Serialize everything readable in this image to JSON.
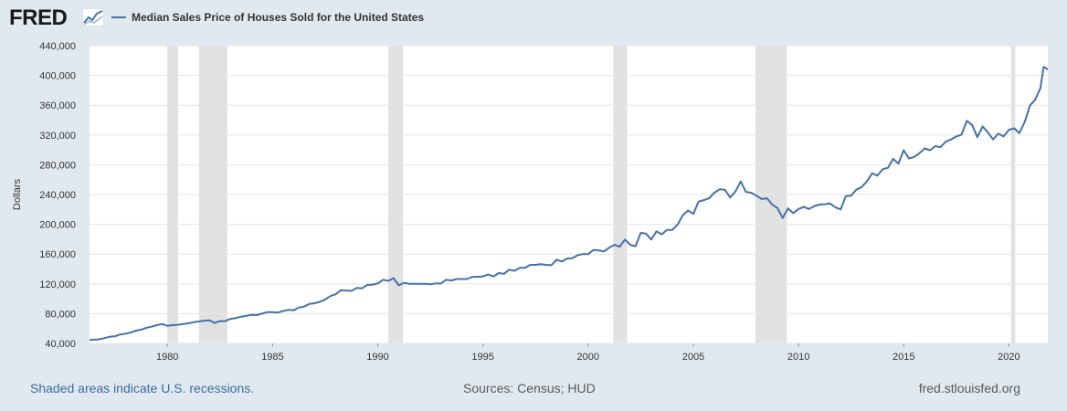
{
  "header": {
    "logo_text": "FRED",
    "logo_icon": "line-graph-icon",
    "series_label": "Median Sales Price of Houses Sold for the United States"
  },
  "footer": {
    "recessions_note": "Shaded areas indicate U.S. recessions.",
    "sources": "Sources: Census; HUD",
    "site": "fred.stlouisfed.org"
  },
  "colors": {
    "background": "#e1e9f0",
    "plot_background": "#ffffff",
    "series": "#4572a7",
    "recession": "#e1e1e1",
    "grid": "#e6e6e6"
  },
  "chart_data": {
    "type": "line",
    "title": "",
    "xlabel": "",
    "ylabel": "Dollars",
    "xlim": [
      1976.3,
      2021.85
    ],
    "ylim": [
      40000,
      440000
    ],
    "yticks": [
      40000,
      80000,
      120000,
      160000,
      200000,
      240000,
      280000,
      320000,
      360000,
      400000,
      440000
    ],
    "ytick_labels": [
      "40,000",
      "80,000",
      "120,000",
      "160,000",
      "200,000",
      "240,000",
      "280,000",
      "320,000",
      "360,000",
      "400,000",
      "440,000"
    ],
    "xticks": [
      1980,
      1985,
      1990,
      1995,
      2000,
      2005,
      2010,
      2015,
      2020
    ],
    "xtick_labels": [
      "1980",
      "1985",
      "1990",
      "1995",
      "2000",
      "2005",
      "2010",
      "2015",
      "2020"
    ],
    "grid": true,
    "legend": "top-left",
    "recessions": [
      [
        1980.0,
        1980.5
      ],
      [
        1981.5,
        1982.85
      ],
      [
        1990.5,
        1991.2
      ],
      [
        2001.2,
        2001.85
      ],
      [
        2007.95,
        2009.45
      ],
      [
        2020.1,
        2020.3
      ]
    ],
    "series": [
      {
        "name": "Median Sales Price of Houses Sold for the United States",
        "points": [
          [
            1976.3,
            44500
          ],
          [
            1976.75,
            45500
          ],
          [
            1977.0,
            47000
          ],
          [
            1977.25,
            49000
          ],
          [
            1977.5,
            49500
          ],
          [
            1977.75,
            52000
          ],
          [
            1978.0,
            53000
          ],
          [
            1978.25,
            54500
          ],
          [
            1978.5,
            57000
          ],
          [
            1978.75,
            58500
          ],
          [
            1979.0,
            61000
          ],
          [
            1979.25,
            62500
          ],
          [
            1979.5,
            64500
          ],
          [
            1979.75,
            66000
          ],
          [
            1980.0,
            63700
          ],
          [
            1980.25,
            64500
          ],
          [
            1980.5,
            65000
          ],
          [
            1980.75,
            66000
          ],
          [
            1981.0,
            67000
          ],
          [
            1981.25,
            68500
          ],
          [
            1981.5,
            69500
          ],
          [
            1981.75,
            70500
          ],
          [
            1982.0,
            71000
          ],
          [
            1982.25,
            67500
          ],
          [
            1982.5,
            70000
          ],
          [
            1982.75,
            70000
          ],
          [
            1983.0,
            73000
          ],
          [
            1983.25,
            74000
          ],
          [
            1983.5,
            76000
          ],
          [
            1983.75,
            77000
          ],
          [
            1984.0,
            78500
          ],
          [
            1984.25,
            78000
          ],
          [
            1984.5,
            80000
          ],
          [
            1984.75,
            82000
          ],
          [
            1985.0,
            82000
          ],
          [
            1985.25,
            81500
          ],
          [
            1985.5,
            83500
          ],
          [
            1985.75,
            85000
          ],
          [
            1986.0,
            84500
          ],
          [
            1986.25,
            88000
          ],
          [
            1986.5,
            89500
          ],
          [
            1986.75,
            93000
          ],
          [
            1987.0,
            94000
          ],
          [
            1987.25,
            96000
          ],
          [
            1987.5,
            99000
          ],
          [
            1987.75,
            103500
          ],
          [
            1988.0,
            106000
          ],
          [
            1988.25,
            111500
          ],
          [
            1988.5,
            111000
          ],
          [
            1988.75,
            110500
          ],
          [
            1989.0,
            114500
          ],
          [
            1989.25,
            114000
          ],
          [
            1989.5,
            118500
          ],
          [
            1989.75,
            119000
          ],
          [
            1990.0,
            120500
          ],
          [
            1990.25,
            125500
          ],
          [
            1990.5,
            124000
          ],
          [
            1990.75,
            127500
          ],
          [
            1991.0,
            118000
          ],
          [
            1991.25,
            121500
          ],
          [
            1991.5,
            120000
          ],
          [
            1991.75,
            120000
          ],
          [
            1992.0,
            120000
          ],
          [
            1992.25,
            120000
          ],
          [
            1992.5,
            119500
          ],
          [
            1992.75,
            120500
          ],
          [
            1993.0,
            120500
          ],
          [
            1993.25,
            125500
          ],
          [
            1993.5,
            124500
          ],
          [
            1993.75,
            126500
          ],
          [
            1994.0,
            126500
          ],
          [
            1994.25,
            126500
          ],
          [
            1994.5,
            129500
          ],
          [
            1994.75,
            129500
          ],
          [
            1995.0,
            130000
          ],
          [
            1995.25,
            132500
          ],
          [
            1995.5,
            130000
          ],
          [
            1995.75,
            134500
          ],
          [
            1996.0,
            133500
          ],
          [
            1996.25,
            139000
          ],
          [
            1996.5,
            137500
          ],
          [
            1996.75,
            141500
          ],
          [
            1997.0,
            141500
          ],
          [
            1997.25,
            145500
          ],
          [
            1997.5,
            145500
          ],
          [
            1997.75,
            146500
          ],
          [
            1998.0,
            145500
          ],
          [
            1998.25,
            145000
          ],
          [
            1998.5,
            152500
          ],
          [
            1998.75,
            150000
          ],
          [
            1999.0,
            154000
          ],
          [
            1999.25,
            154500
          ],
          [
            1999.5,
            158500
          ],
          [
            1999.75,
            160000
          ],
          [
            2000.0,
            160000
          ],
          [
            2000.25,
            165500
          ],
          [
            2000.5,
            165000
          ],
          [
            2000.75,
            163500
          ],
          [
            2001.0,
            168500
          ],
          [
            2001.25,
            172500
          ],
          [
            2001.5,
            170000
          ],
          [
            2001.75,
            179500
          ],
          [
            2002.0,
            172500
          ],
          [
            2002.25,
            170500
          ],
          [
            2002.5,
            188500
          ],
          [
            2002.75,
            187500
          ],
          [
            2003.0,
            179500
          ],
          [
            2003.25,
            190500
          ],
          [
            2003.5,
            186500
          ],
          [
            2003.75,
            192500
          ],
          [
            2004.0,
            192500
          ],
          [
            2004.25,
            199500
          ],
          [
            2004.5,
            212000
          ],
          [
            2004.75,
            218500
          ],
          [
            2005.0,
            214000
          ],
          [
            2005.25,
            230500
          ],
          [
            2005.5,
            232500
          ],
          [
            2005.75,
            235000
          ],
          [
            2006.0,
            242500
          ],
          [
            2006.25,
            247000
          ],
          [
            2006.5,
            246500
          ],
          [
            2006.75,
            236000
          ],
          [
            2007.0,
            244000
          ],
          [
            2007.25,
            257500
          ],
          [
            2007.5,
            243500
          ],
          [
            2007.75,
            242500
          ],
          [
            2008.0,
            238500
          ],
          [
            2008.25,
            234000
          ],
          [
            2008.5,
            235000
          ],
          [
            2008.75,
            226500
          ],
          [
            2009.0,
            222000
          ],
          [
            2009.25,
            208500
          ],
          [
            2009.5,
            221500
          ],
          [
            2009.75,
            215000
          ],
          [
            2010.0,
            220500
          ],
          [
            2010.25,
            223500
          ],
          [
            2010.5,
            220500
          ],
          [
            2010.75,
            224500
          ],
          [
            2011.0,
            226500
          ],
          [
            2011.25,
            227000
          ],
          [
            2011.5,
            228000
          ],
          [
            2011.75,
            223000
          ],
          [
            2012.0,
            220000
          ],
          [
            2012.25,
            238000
          ],
          [
            2012.5,
            238500
          ],
          [
            2012.75,
            246500
          ],
          [
            2013.0,
            250000
          ],
          [
            2013.25,
            257500
          ],
          [
            2013.5,
            268500
          ],
          [
            2013.75,
            265500
          ],
          [
            2014.0,
            274000
          ],
          [
            2014.25,
            276000
          ],
          [
            2014.5,
            288000
          ],
          [
            2014.75,
            281500
          ],
          [
            2015.0,
            299500
          ],
          [
            2015.25,
            288500
          ],
          [
            2015.5,
            290500
          ],
          [
            2015.75,
            295500
          ],
          [
            2016.0,
            302000
          ],
          [
            2016.25,
            299500
          ],
          [
            2016.5,
            305000
          ],
          [
            2016.75,
            303500
          ],
          [
            2017.0,
            311000
          ],
          [
            2017.25,
            314000
          ],
          [
            2017.5,
            318000
          ],
          [
            2017.75,
            320500
          ],
          [
            2018.0,
            339000
          ],
          [
            2018.25,
            333500
          ],
          [
            2018.5,
            317000
          ],
          [
            2018.75,
            331500
          ],
          [
            2019.0,
            323500
          ],
          [
            2019.25,
            314000
          ],
          [
            2019.5,
            322000
          ],
          [
            2019.75,
            318000
          ],
          [
            2020.0,
            327000
          ],
          [
            2020.25,
            329000
          ],
          [
            2020.5,
            322600
          ],
          [
            2020.75,
            337500
          ],
          [
            2021.0,
            359500
          ],
          [
            2021.25,
            367500
          ],
          [
            2021.5,
            383000
          ],
          [
            2021.65,
            411500
          ],
          [
            2021.85,
            408100
          ]
        ]
      }
    ]
  }
}
